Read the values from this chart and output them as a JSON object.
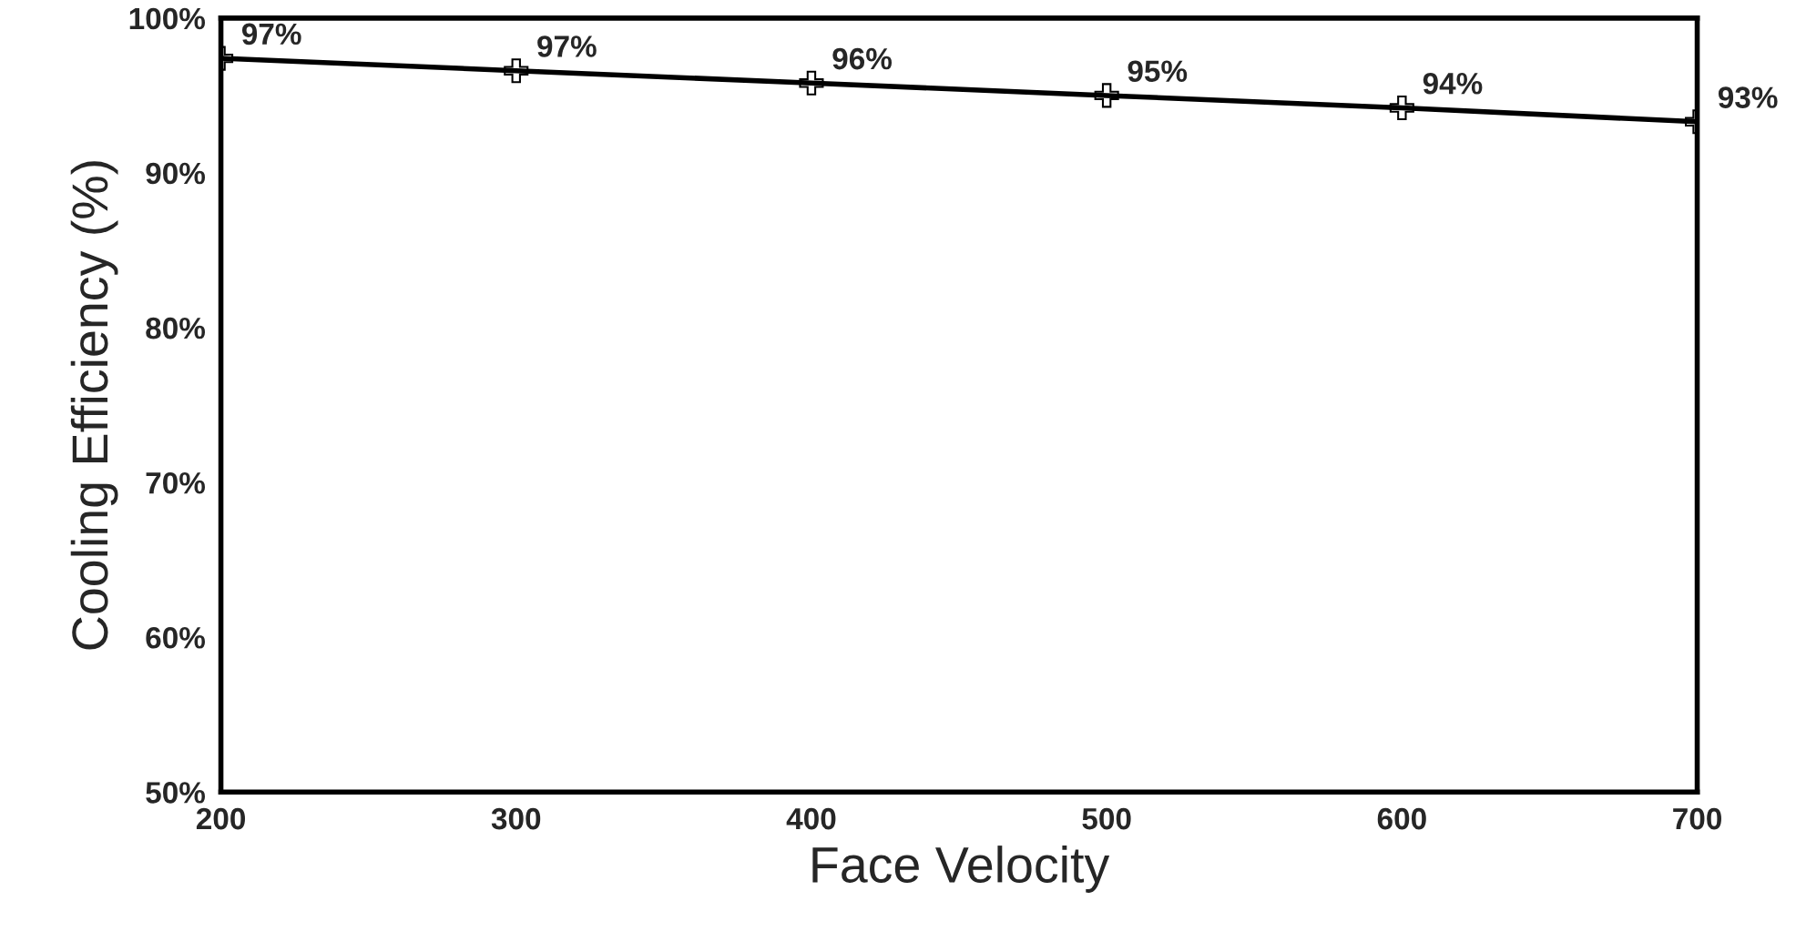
{
  "chart_data": {
    "type": "line",
    "xlabel": "Face Velocity",
    "ylabel": "Cooling Efficiency (%)",
    "x": [
      200,
      300,
      400,
      500,
      600,
      700
    ],
    "series": [
      {
        "color": "#000000",
        "values": [
          97.4,
          96.6,
          95.8,
          95.0,
          94.2,
          93.3
        ]
      }
    ],
    "value_labels": [
      "97%",
      "97%",
      "96%",
      "95%",
      "94%",
      "93%"
    ],
    "xlim": [
      200,
      700
    ],
    "xticks": [
      200,
      300,
      400,
      500,
      600,
      700
    ],
    "ylim": [
      50,
      100
    ],
    "yticks": [
      {
        "value": 50,
        "label": "50%"
      },
      {
        "value": 60,
        "label": "60%"
      },
      {
        "value": 70,
        "label": "70%"
      },
      {
        "value": 80,
        "label": "80%"
      },
      {
        "value": 90,
        "label": "90%"
      },
      {
        "value": 100,
        "label": "100%"
      }
    ],
    "marker": "cross",
    "line_style": "solid",
    "grid": false,
    "legend": false
  }
}
